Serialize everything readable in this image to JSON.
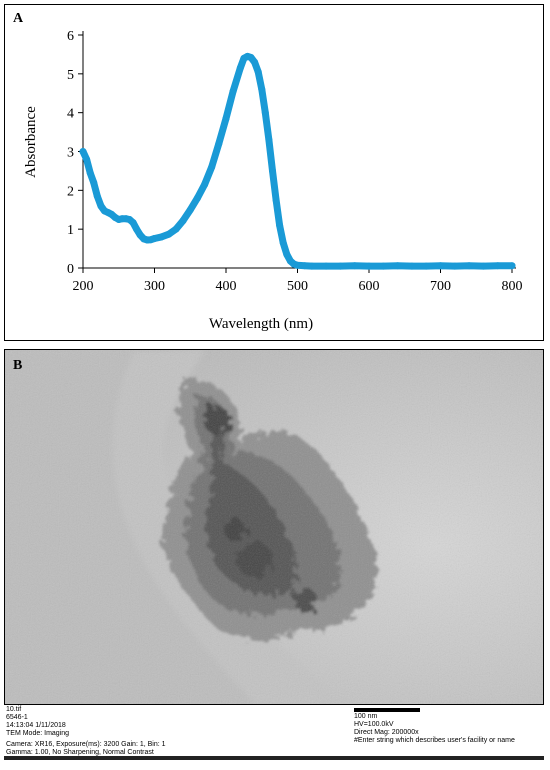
{
  "panel_a_label": "A",
  "panel_b_label": "B",
  "chart_data": {
    "type": "line",
    "title": "",
    "xlabel": "Wavelength (nm)",
    "ylabel": "Absorbance",
    "xlim": [
      200,
      800
    ],
    "ylim": [
      0,
      6
    ],
    "xticks": [
      "200",
      "300",
      "400",
      "500",
      "600",
      "700",
      "800"
    ],
    "yticks": [
      "0",
      "1",
      "2",
      "3",
      "4",
      "5",
      "6"
    ],
    "grid": false,
    "legend": "none",
    "series": [
      {
        "color": "#1a9ad6",
        "points": [
          [
            200,
            3.0
          ],
          [
            205,
            2.8
          ],
          [
            210,
            2.45
          ],
          [
            215,
            2.2
          ],
          [
            220,
            1.85
          ],
          [
            225,
            1.6
          ],
          [
            230,
            1.47
          ],
          [
            235,
            1.43
          ],
          [
            240,
            1.38
          ],
          [
            245,
            1.3
          ],
          [
            250,
            1.25
          ],
          [
            255,
            1.27
          ],
          [
            260,
            1.27
          ],
          [
            265,
            1.25
          ],
          [
            270,
            1.17
          ],
          [
            275,
            1.0
          ],
          [
            280,
            0.85
          ],
          [
            285,
            0.75
          ],
          [
            290,
            0.72
          ],
          [
            295,
            0.73
          ],
          [
            300,
            0.76
          ],
          [
            310,
            0.8
          ],
          [
            320,
            0.87
          ],
          [
            330,
            1.0
          ],
          [
            340,
            1.22
          ],
          [
            350,
            1.5
          ],
          [
            360,
            1.8
          ],
          [
            370,
            2.15
          ],
          [
            380,
            2.6
          ],
          [
            390,
            3.2
          ],
          [
            400,
            3.85
          ],
          [
            410,
            4.55
          ],
          [
            420,
            5.15
          ],
          [
            425,
            5.4
          ],
          [
            430,
            5.45
          ],
          [
            435,
            5.42
          ],
          [
            440,
            5.3
          ],
          [
            445,
            5.05
          ],
          [
            450,
            4.6
          ],
          [
            455,
            4.0
          ],
          [
            460,
            3.3
          ],
          [
            465,
            2.5
          ],
          [
            470,
            1.75
          ],
          [
            475,
            1.1
          ],
          [
            480,
            0.65
          ],
          [
            485,
            0.35
          ],
          [
            490,
            0.18
          ],
          [
            495,
            0.1
          ],
          [
            500,
            0.07
          ],
          [
            510,
            0.06
          ],
          [
            520,
            0.05
          ],
          [
            540,
            0.05
          ],
          [
            560,
            0.05
          ],
          [
            580,
            0.06
          ],
          [
            600,
            0.05
          ],
          [
            620,
            0.05
          ],
          [
            640,
            0.06
          ],
          [
            660,
            0.05
          ],
          [
            680,
            0.05
          ],
          [
            700,
            0.06
          ],
          [
            720,
            0.05
          ],
          [
            740,
            0.06
          ],
          [
            760,
            0.05
          ],
          [
            780,
            0.06
          ],
          [
            800,
            0.06
          ]
        ]
      }
    ]
  },
  "tem_meta": {
    "left_lines": [
      "10.tif",
      "6546-1",
      "14:13:04 1/11/2018",
      "TEM Mode: Imaging"
    ],
    "camera_line": "Camera: XR16, Exposure(ms): 3200 Gain: 1, Bin:  1",
    "gamma_line": "Gamma: 1.00, No Sharpening, Normal Contrast",
    "right_lines": [
      "100 nm",
      "HV=100.0kV",
      "Direct Mag: 200000x",
      "#Enter string which describes user's facility or name"
    ]
  }
}
